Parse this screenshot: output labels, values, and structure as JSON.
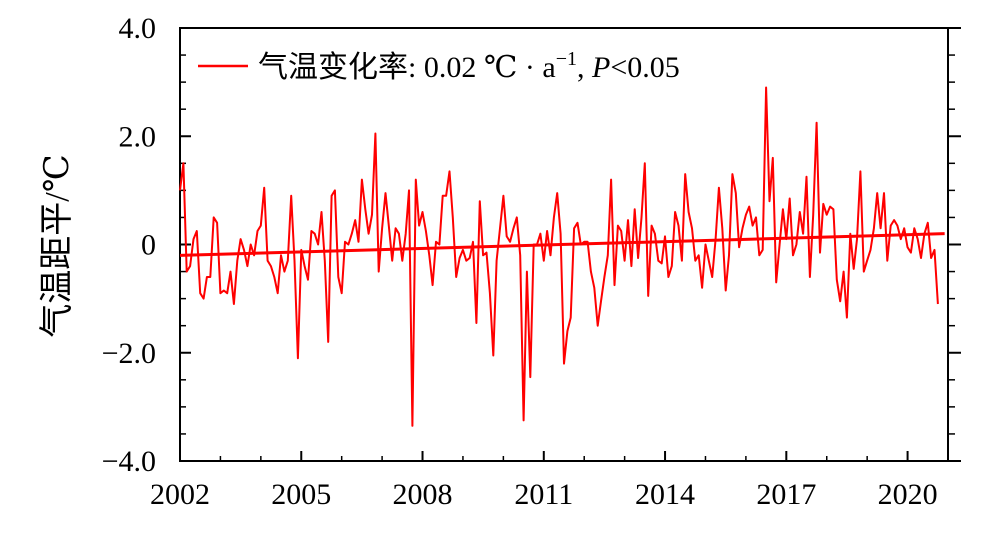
{
  "chart_data": {
    "type": "line",
    "ylabel": "气温距平/℃",
    "xlabel": "",
    "x_range": [
      2002.0,
      2021.0
    ],
    "ylim": [
      -4.0,
      4.0
    ],
    "x_ticks": [
      2002,
      2005,
      2008,
      2011,
      2014,
      2017,
      2020
    ],
    "x_tick_labels": [
      "2002",
      "2005",
      "2008",
      "2011",
      "2014",
      "2017",
      "2020"
    ],
    "y_ticks": [
      -4,
      -2,
      0,
      2,
      4
    ],
    "y_tick_labels": [
      "−4.0",
      "−2.0",
      "0",
      "2.0",
      "4.0"
    ],
    "grid": false,
    "legend_position": "top-left",
    "series_color": "#ff0000",
    "legend": {
      "label": "气温变化率",
      "rate_text": ": 0.02 ℃ · a",
      "rate_exponent": "−1",
      "p_sep": ", ",
      "p_symbol": "P",
      "p_condition": "<0.05"
    },
    "series": [
      {
        "name": "气温变化率",
        "x_start": 2002.0,
        "x_step": 0.08333,
        "values": [
          1.0,
          1.5,
          -0.5,
          -0.4,
          0.1,
          0.25,
          -0.9,
          -1.0,
          -0.6,
          -0.6,
          0.5,
          0.4,
          -0.9,
          -0.85,
          -0.9,
          -0.5,
          -1.1,
          -0.3,
          0.1,
          -0.1,
          -0.4,
          0.0,
          -0.2,
          0.25,
          0.35,
          1.05,
          -0.3,
          -0.4,
          -0.6,
          -0.9,
          -0.2,
          -0.5,
          -0.3,
          0.9,
          -0.3,
          -2.1,
          -0.1,
          -0.4,
          -0.65,
          0.25,
          0.2,
          0.0,
          0.6,
          -0.3,
          -1.8,
          0.9,
          1.0,
          -0.6,
          -0.9,
          0.05,
          0.0,
          0.2,
          0.45,
          0.05,
          1.2,
          0.65,
          0.2,
          0.55,
          2.05,
          -0.5,
          0.3,
          0.95,
          0.35,
          -0.3,
          0.3,
          0.2,
          -0.3,
          0.2,
          1.0,
          -3.35,
          1.2,
          0.35,
          0.6,
          0.25,
          -0.2,
          -0.75,
          0.05,
          0.0,
          0.9,
          0.9,
          1.35,
          0.5,
          -0.6,
          -0.25,
          -0.1,
          -0.3,
          -0.25,
          0.05,
          -1.45,
          0.8,
          -0.2,
          -0.15,
          -0.9,
          -2.05,
          -0.3,
          0.3,
          0.9,
          0.15,
          0.05,
          0.3,
          0.5,
          -0.2,
          -3.25,
          -0.5,
          -2.45,
          0.0,
          0.0,
          0.2,
          -0.3,
          0.25,
          -0.2,
          0.5,
          0.95,
          0.2,
          -2.2,
          -1.6,
          -1.35,
          0.3,
          0.4,
          0.0,
          0.05,
          0.05,
          -0.5,
          -0.8,
          -1.5,
          -1.05,
          -0.6,
          -0.2,
          1.2,
          -0.75,
          0.35,
          0.25,
          -0.3,
          0.45,
          -0.4,
          0.65,
          -0.25,
          0.5,
          1.5,
          -0.95,
          0.35,
          0.2,
          -0.3,
          -0.35,
          0.15,
          -0.6,
          -0.4,
          0.6,
          0.35,
          -0.3,
          1.3,
          0.6,
          0.3,
          -0.3,
          -0.2,
          -0.8,
          0.0,
          -0.3,
          -0.6,
          0.1,
          1.05,
          0.3,
          -0.85,
          -0.2,
          1.3,
          0.95,
          -0.05,
          0.3,
          0.55,
          0.7,
          0.35,
          0.5,
          -0.2,
          -0.1,
          2.9,
          0.8,
          1.6,
          -0.7,
          0.0,
          0.65,
          0.1,
          0.85,
          -0.2,
          0.0,
          0.6,
          0.2,
          1.25,
          -0.6,
          0.55,
          2.25,
          -0.15,
          0.75,
          0.55,
          0.7,
          0.65,
          -0.65,
          -1.05,
          -0.5,
          -1.35,
          0.2,
          -0.45,
          0.1,
          1.35,
          -0.5,
          -0.3,
          -0.1,
          0.3,
          0.95,
          0.3,
          0.95,
          -0.3,
          0.35,
          0.45,
          0.35,
          0.1,
          0.3,
          -0.05,
          -0.15,
          0.3,
          0.1,
          -0.25,
          0.2,
          0.4,
          -0.25,
          -0.1,
          -1.1
        ]
      }
    ],
    "trend": {
      "start": [
        2002.0,
        -0.2
      ],
      "end": [
        2020.917,
        0.2
      ]
    }
  }
}
